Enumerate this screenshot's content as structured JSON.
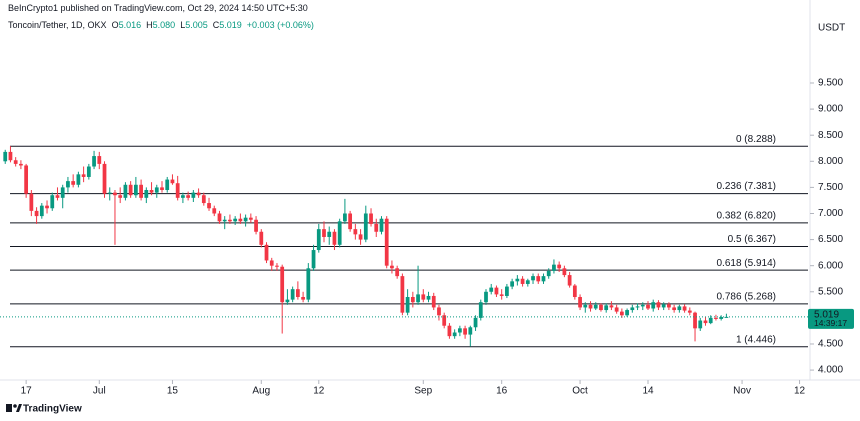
{
  "header": {
    "publisher": "BeInCrypto1 published on TradingView.com, Oct 29, 2024 14:50 UTC+5:30",
    "symbol": "Toncoin/Tether, 1D, OKX",
    "o_label": "O",
    "open": "5.016",
    "h_label": "H",
    "high": "5.080",
    "l_label": "L",
    "low": "5.005",
    "c_label": "C",
    "close": "5.019",
    "change": "+0.003 (+0.06%)"
  },
  "footer": {
    "logo": "TradingView"
  },
  "chart_data": {
    "type": "candlestick",
    "y_unit": "USDT",
    "up_color": "#089981",
    "down_color": "#f23645",
    "xlim": [
      "2024-06-12",
      "2024-11-14"
    ],
    "xticks": [
      {
        "value": "2024-06-17",
        "label": "17"
      },
      {
        "value": "2024-07-01",
        "label": "Jul"
      },
      {
        "value": "2024-07-15",
        "label": "15"
      },
      {
        "value": "2024-08-01",
        "label": "Aug"
      },
      {
        "value": "2024-08-12",
        "label": "12"
      },
      {
        "value": "2024-09-01",
        "label": "Sep"
      },
      {
        "value": "2024-09-16",
        "label": "16"
      },
      {
        "value": "2024-10-01",
        "label": "Oct"
      },
      {
        "value": "2024-10-14",
        "label": "14"
      },
      {
        "value": "2024-11-01",
        "label": "Nov"
      },
      {
        "value": "2024-11-12",
        "label": "12"
      }
    ],
    "ylim": [
      3.81,
      11.09
    ],
    "yticks": [
      {
        "value": 4,
        "label": "4.000"
      },
      {
        "value": 4.5,
        "label": "4.500"
      },
      {
        "value": 5.5,
        "label": "5.500"
      },
      {
        "value": 6,
        "label": "6.000"
      },
      {
        "value": 6.5,
        "label": "6.500"
      },
      {
        "value": 7,
        "label": "7.000"
      },
      {
        "value": 7.5,
        "label": "7.500"
      },
      {
        "value": 8,
        "label": "8.000"
      },
      {
        "value": 8.5,
        "label": "8.500"
      },
      {
        "value": 9,
        "label": "9.000"
      },
      {
        "value": 9.5,
        "label": "9.500"
      }
    ],
    "last_price": 5.019,
    "countdown": "14:39:17",
    "levels": [
      {
        "value": 8.288,
        "label": "0 (8.288)"
      },
      {
        "value": 7.381,
        "label": "0.236 (7.381)"
      },
      {
        "value": 6.82,
        "label": "0.382 (6.820)"
      },
      {
        "value": 6.367,
        "label": "0.5 (6.367)"
      },
      {
        "value": 5.914,
        "label": "0.618 (5.914)"
      },
      {
        "value": 5.268,
        "label": "0.786 (5.268)"
      },
      {
        "value": 4.446,
        "label": "1 (4.446)"
      }
    ],
    "x": [
      "2024-06-13",
      "2024-06-14",
      "2024-06-15",
      "2024-06-16",
      "2024-06-17",
      "2024-06-18",
      "2024-06-19",
      "2024-06-20",
      "2024-06-21",
      "2024-06-22",
      "2024-06-23",
      "2024-06-24",
      "2024-06-25",
      "2024-06-26",
      "2024-06-27",
      "2024-06-28",
      "2024-06-29",
      "2024-06-30",
      "2024-07-01",
      "2024-07-02",
      "2024-07-03",
      "2024-07-04",
      "2024-07-05",
      "2024-07-06",
      "2024-07-07",
      "2024-07-08",
      "2024-07-09",
      "2024-07-10",
      "2024-07-11",
      "2024-07-12",
      "2024-07-13",
      "2024-07-14",
      "2024-07-15",
      "2024-07-16",
      "2024-07-17",
      "2024-07-18",
      "2024-07-19",
      "2024-07-20",
      "2024-07-21",
      "2024-07-22",
      "2024-07-23",
      "2024-07-24",
      "2024-07-25",
      "2024-07-26",
      "2024-07-27",
      "2024-07-28",
      "2024-07-29",
      "2024-07-30",
      "2024-07-31",
      "2024-08-01",
      "2024-08-02",
      "2024-08-03",
      "2024-08-04",
      "2024-08-05",
      "2024-08-06",
      "2024-08-07",
      "2024-08-08",
      "2024-08-09",
      "2024-08-10",
      "2024-08-11",
      "2024-08-12",
      "2024-08-13",
      "2024-08-14",
      "2024-08-15",
      "2024-08-16",
      "2024-08-17",
      "2024-08-18",
      "2024-08-19",
      "2024-08-20",
      "2024-08-21",
      "2024-08-22",
      "2024-08-23",
      "2024-08-24",
      "2024-08-25",
      "2024-08-26",
      "2024-08-27",
      "2024-08-28",
      "2024-08-29",
      "2024-08-30",
      "2024-08-31",
      "2024-09-01",
      "2024-09-02",
      "2024-09-03",
      "2024-09-04",
      "2024-09-05",
      "2024-09-06",
      "2024-09-07",
      "2024-09-08",
      "2024-09-09",
      "2024-09-10",
      "2024-09-11",
      "2024-09-12",
      "2024-09-13",
      "2024-09-14",
      "2024-09-15",
      "2024-09-16",
      "2024-09-17",
      "2024-09-18",
      "2024-09-19",
      "2024-09-20",
      "2024-09-21",
      "2024-09-22",
      "2024-09-23",
      "2024-09-24",
      "2024-09-25",
      "2024-09-26",
      "2024-09-27",
      "2024-09-28",
      "2024-09-29",
      "2024-09-30",
      "2024-10-01",
      "2024-10-02",
      "2024-10-03",
      "2024-10-04",
      "2024-10-05",
      "2024-10-06",
      "2024-10-07",
      "2024-10-08",
      "2024-10-09",
      "2024-10-10",
      "2024-10-11",
      "2024-10-12",
      "2024-10-13",
      "2024-10-14",
      "2024-10-15",
      "2024-10-16",
      "2024-10-17",
      "2024-10-18",
      "2024-10-19",
      "2024-10-20",
      "2024-10-21",
      "2024-10-22",
      "2024-10-23",
      "2024-10-24",
      "2024-10-25",
      "2024-10-26",
      "2024-10-27",
      "2024-10-28",
      "2024-10-29"
    ],
    "ohlc": [
      [
        8.0,
        8.22,
        7.95,
        8.18
      ],
      [
        8.18,
        8.29,
        7.98,
        8.02
      ],
      [
        8.02,
        8.08,
        7.9,
        7.95
      ],
      [
        7.95,
        8.02,
        7.85,
        7.92
      ],
      [
        7.92,
        7.95,
        7.3,
        7.38
      ],
      [
        7.38,
        7.45,
        6.95,
        7.05
      ],
      [
        7.05,
        7.12,
        6.8,
        6.95
      ],
      [
        6.95,
        7.2,
        6.9,
        7.15
      ],
      [
        7.15,
        7.25,
        7.0,
        7.1
      ],
      [
        7.1,
        7.4,
        7.05,
        7.35
      ],
      [
        7.35,
        7.5,
        7.25,
        7.3
      ],
      [
        7.3,
        7.55,
        7.1,
        7.5
      ],
      [
        7.5,
        7.7,
        7.4,
        7.62
      ],
      [
        7.62,
        7.75,
        7.5,
        7.55
      ],
      [
        7.55,
        7.8,
        7.5,
        7.75
      ],
      [
        7.75,
        7.9,
        7.6,
        7.7
      ],
      [
        7.7,
        7.95,
        7.65,
        7.9
      ],
      [
        7.9,
        8.2,
        7.85,
        8.1
      ],
      [
        8.1,
        8.18,
        7.85,
        7.95
      ],
      [
        7.95,
        8.0,
        7.3,
        7.38
      ],
      [
        7.38,
        7.5,
        7.25,
        7.4
      ],
      [
        7.4,
        7.45,
        6.4,
        7.35
      ],
      [
        7.35,
        7.5,
        7.2,
        7.3
      ],
      [
        7.3,
        7.6,
        7.25,
        7.55
      ],
      [
        7.55,
        7.62,
        7.3,
        7.35
      ],
      [
        7.35,
        7.7,
        7.3,
        7.55
      ],
      [
        7.55,
        7.65,
        7.25,
        7.3
      ],
      [
        7.3,
        7.5,
        7.2,
        7.45
      ],
      [
        7.45,
        7.6,
        7.35,
        7.4
      ],
      [
        7.4,
        7.55,
        7.3,
        7.5
      ],
      [
        7.5,
        7.62,
        7.4,
        7.45
      ],
      [
        7.45,
        7.7,
        7.4,
        7.65
      ],
      [
        7.65,
        7.75,
        7.55,
        7.58
      ],
      [
        7.58,
        7.72,
        7.25,
        7.3
      ],
      [
        7.3,
        7.4,
        7.2,
        7.35
      ],
      [
        7.35,
        7.42,
        7.25,
        7.3
      ],
      [
        7.3,
        7.45,
        7.22,
        7.4
      ],
      [
        7.4,
        7.48,
        7.3,
        7.35
      ],
      [
        7.35,
        7.4,
        7.15,
        7.2
      ],
      [
        7.2,
        7.3,
        7.05,
        7.1
      ],
      [
        7.1,
        7.15,
        6.95,
        7.0
      ],
      [
        7.0,
        7.05,
        6.8,
        6.85
      ],
      [
        6.85,
        6.95,
        6.7,
        6.88
      ],
      [
        6.88,
        6.98,
        6.8,
        6.85
      ],
      [
        6.85,
        6.95,
        6.78,
        6.9
      ],
      [
        6.9,
        7.0,
        6.8,
        6.85
      ],
      [
        6.85,
        6.98,
        6.75,
        6.92
      ],
      [
        6.92,
        7.0,
        6.82,
        6.88
      ],
      [
        6.88,
        6.95,
        6.6,
        6.65
      ],
      [
        6.65,
        6.7,
        6.35,
        6.4
      ],
      [
        6.4,
        6.45,
        6.05,
        6.1
      ],
      [
        6.1,
        6.15,
        5.9,
        6.0
      ],
      [
        6.0,
        6.05,
        5.9,
        5.98
      ],
      [
        5.98,
        6.02,
        4.7,
        5.3
      ],
      [
        5.3,
        5.55,
        5.25,
        5.35
      ],
      [
        5.35,
        5.6,
        5.3,
        5.55
      ],
      [
        5.55,
        5.7,
        5.35,
        5.4
      ],
      [
        5.4,
        5.5,
        5.3,
        5.35
      ],
      [
        5.35,
        6.05,
        5.3,
        5.95
      ],
      [
        5.95,
        6.4,
        5.9,
        6.3
      ],
      [
        6.3,
        6.8,
        6.25,
        6.7
      ],
      [
        6.7,
        6.85,
        6.45,
        6.55
      ],
      [
        6.55,
        6.75,
        6.4,
        6.65
      ],
      [
        6.65,
        6.7,
        6.3,
        6.4
      ],
      [
        6.4,
        6.9,
        6.35,
        6.85
      ],
      [
        6.85,
        7.28,
        6.8,
        7.0
      ],
      [
        7.0,
        7.05,
        6.65,
        6.7
      ],
      [
        6.7,
        6.8,
        6.5,
        6.6
      ],
      [
        6.6,
        6.7,
        6.4,
        6.5
      ],
      [
        6.5,
        7.15,
        6.45,
        7.0
      ],
      [
        7.0,
        7.1,
        6.75,
        6.8
      ],
      [
        6.8,
        6.9,
        6.55,
        6.65
      ],
      [
        6.65,
        6.95,
        6.6,
        6.9
      ],
      [
        6.9,
        6.95,
        5.95,
        6.0
      ],
      [
        6.0,
        6.1,
        5.85,
        5.95
      ],
      [
        5.95,
        6.0,
        5.75,
        5.8
      ],
      [
        5.8,
        5.85,
        5.05,
        5.1
      ],
      [
        5.1,
        5.55,
        5.05,
        5.4
      ],
      [
        5.4,
        5.5,
        5.2,
        5.3
      ],
      [
        5.3,
        6.0,
        5.25,
        5.45
      ],
      [
        5.45,
        5.55,
        5.3,
        5.35
      ],
      [
        5.35,
        5.5,
        5.3,
        5.42
      ],
      [
        5.42,
        5.48,
        5.15,
        5.2
      ],
      [
        5.2,
        5.25,
        4.95,
        5.05
      ],
      [
        5.05,
        5.1,
        4.8,
        4.85
      ],
      [
        4.85,
        4.9,
        4.6,
        4.65
      ],
      [
        4.65,
        4.78,
        4.6,
        4.72
      ],
      [
        4.72,
        4.85,
        4.65,
        4.8
      ],
      [
        4.8,
        4.85,
        4.6,
        4.68
      ],
      [
        4.68,
        4.85,
        4.45,
        4.82
      ],
      [
        4.82,
        5.05,
        4.75,
        5.0
      ],
      [
        5.0,
        5.35,
        4.95,
        5.3
      ],
      [
        5.3,
        5.55,
        5.25,
        5.5
      ],
      [
        5.5,
        5.65,
        5.45,
        5.58
      ],
      [
        5.58,
        5.62,
        5.4,
        5.45
      ],
      [
        5.45,
        5.55,
        5.35,
        5.42
      ],
      [
        5.42,
        5.65,
        5.38,
        5.6
      ],
      [
        5.6,
        5.75,
        5.55,
        5.7
      ],
      [
        5.7,
        5.82,
        5.62,
        5.75
      ],
      [
        5.75,
        5.8,
        5.6,
        5.65
      ],
      [
        5.65,
        5.75,
        5.6,
        5.72
      ],
      [
        5.72,
        5.85,
        5.65,
        5.8
      ],
      [
        5.8,
        5.85,
        5.65,
        5.7
      ],
      [
        5.7,
        5.85,
        5.65,
        5.8
      ],
      [
        5.8,
        5.95,
        5.75,
        5.9
      ],
      [
        5.9,
        6.12,
        5.85,
        6.02
      ],
      [
        6.02,
        6.08,
        5.88,
        5.95
      ],
      [
        5.95,
        6.0,
        5.78,
        5.82
      ],
      [
        5.82,
        5.88,
        5.58,
        5.62
      ],
      [
        5.62,
        5.65,
        5.35,
        5.4
      ],
      [
        5.4,
        5.45,
        5.15,
        5.2
      ],
      [
        5.2,
        5.3,
        5.1,
        5.25
      ],
      [
        5.25,
        5.32,
        5.12,
        5.18
      ],
      [
        5.18,
        5.3,
        5.15,
        5.25
      ],
      [
        5.25,
        5.28,
        5.12,
        5.15
      ],
      [
        5.15,
        5.28,
        5.1,
        5.24
      ],
      [
        5.24,
        5.32,
        5.15,
        5.2
      ],
      [
        5.2,
        5.25,
        5.08,
        5.12
      ],
      [
        5.12,
        5.18,
        5.0,
        5.05
      ],
      [
        5.05,
        5.18,
        5.02,
        5.15
      ],
      [
        5.15,
        5.25,
        5.1,
        5.2
      ],
      [
        5.2,
        5.28,
        5.15,
        5.22
      ],
      [
        5.22,
        5.3,
        5.15,
        5.25
      ],
      [
        5.25,
        5.32,
        5.15,
        5.18
      ],
      [
        5.18,
        5.35,
        5.12,
        5.3
      ],
      [
        5.3,
        5.34,
        5.15,
        5.2
      ],
      [
        5.2,
        5.3,
        5.15,
        5.26
      ],
      [
        5.26,
        5.3,
        5.15,
        5.2
      ],
      [
        5.2,
        5.25,
        5.1,
        5.15
      ],
      [
        5.15,
        5.25,
        5.1,
        5.22
      ],
      [
        5.22,
        5.26,
        5.1,
        5.14
      ],
      [
        5.14,
        5.2,
        5.05,
        5.1
      ],
      [
        5.1,
        5.12,
        4.55,
        4.8
      ],
      [
        4.8,
        5.0,
        4.75,
        4.95
      ],
      [
        4.95,
        5.02,
        4.85,
        4.9
      ],
      [
        4.9,
        5.05,
        4.88,
        5.0
      ],
      [
        5.0,
        5.06,
        4.95,
        4.98
      ],
      [
        4.98,
        5.05,
        4.95,
        5.016
      ],
      [
        5.016,
        5.08,
        5.005,
        5.019
      ]
    ]
  }
}
